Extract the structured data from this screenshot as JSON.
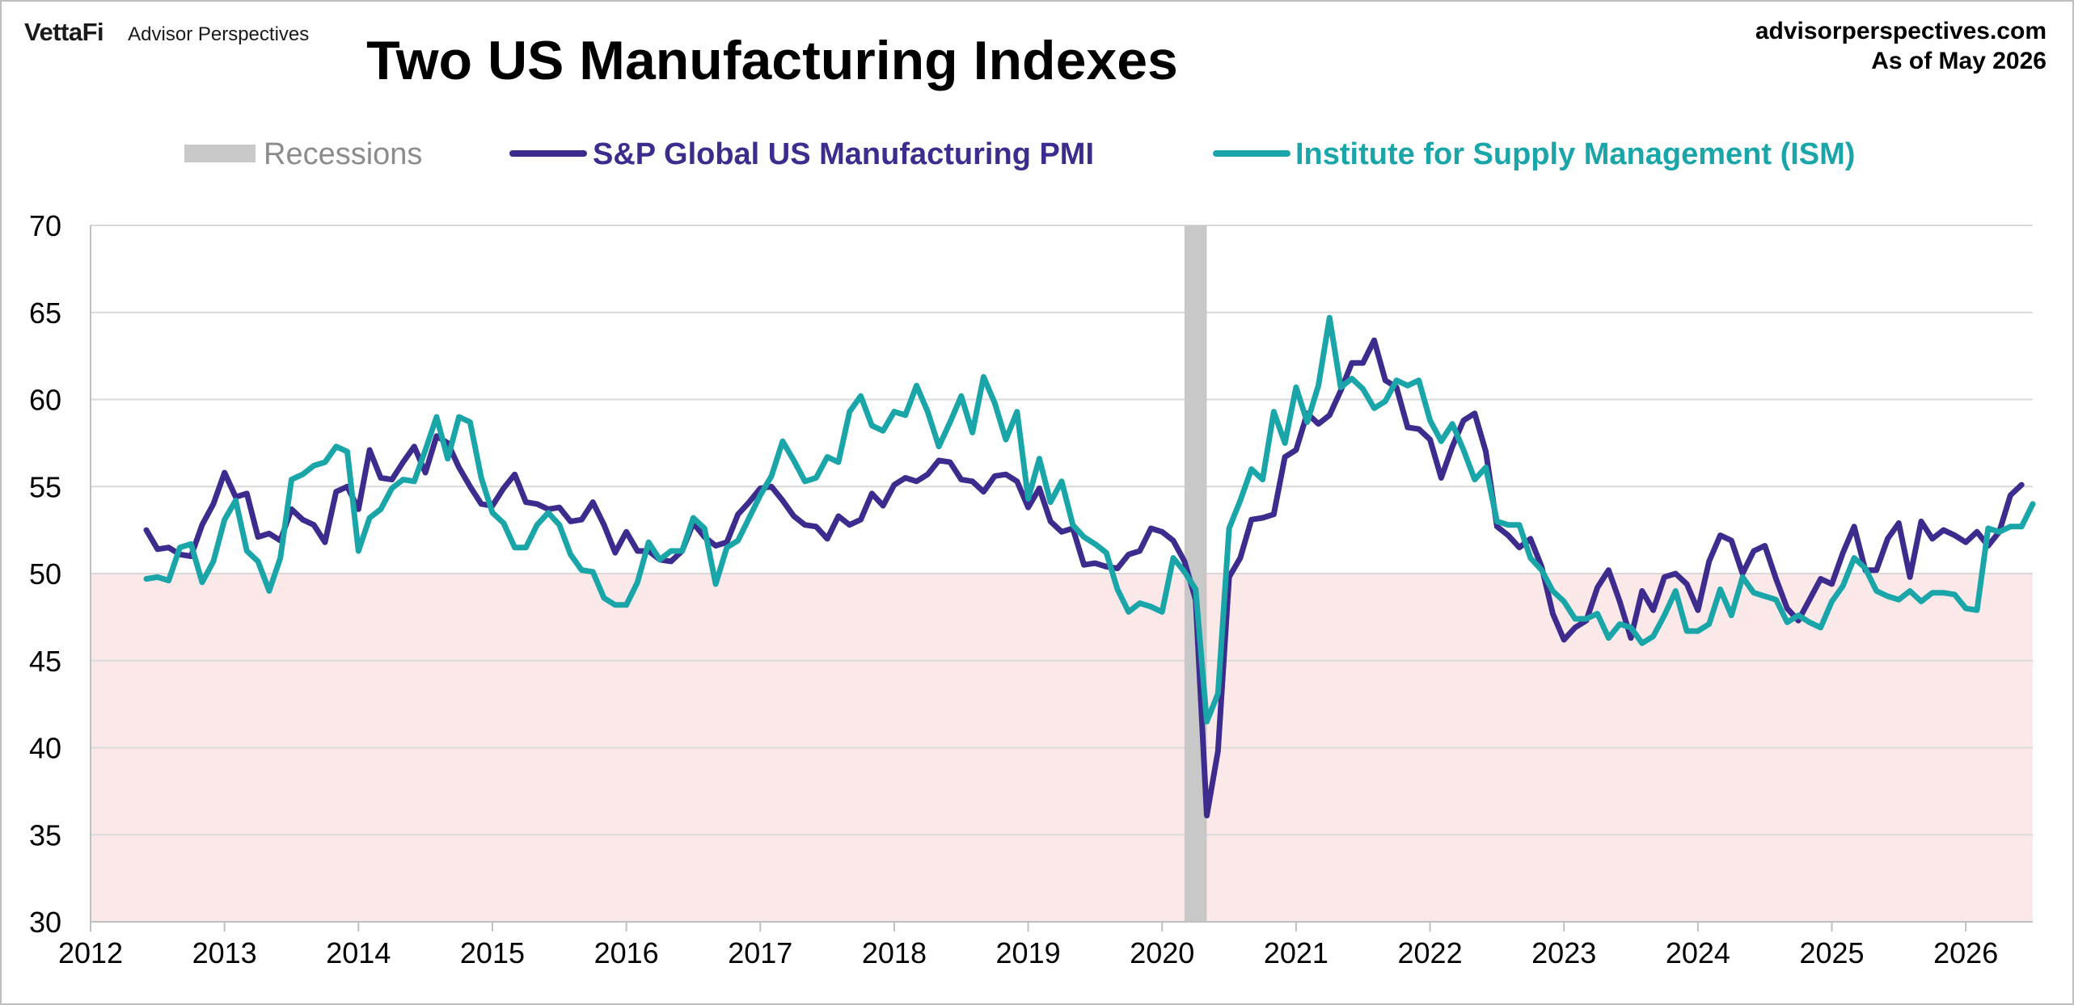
{
  "header": {
    "brand_primary": "VettaFi",
    "brand_secondary": "Advisor Perspectives",
    "source_url": "advisorperspectives.com",
    "as_of": "As of  May 2026"
  },
  "chart_data": {
    "type": "line",
    "title": "Two US Manufacturing Indexes",
    "xlabel": "",
    "ylabel": "",
    "ylim": [
      30,
      70
    ],
    "yticks": [
      30,
      35,
      40,
      45,
      50,
      55,
      60,
      65,
      70
    ],
    "xlim": [
      "2012-01",
      "2026-07"
    ],
    "xticks": [
      "2012",
      "2013",
      "2014",
      "2015",
      "2016",
      "2017",
      "2018",
      "2019",
      "2020",
      "2021",
      "2022",
      "2023",
      "2024",
      "2025",
      "2026"
    ],
    "grid": true,
    "legend_position": "top",
    "contraction_zone": [
      30,
      50
    ],
    "colors": {
      "recession": "#c8c8c8",
      "spglobal": "#3d2b8e",
      "ism": "#1aa6a8",
      "contraction": "#fbe9ea",
      "grid": "#d9d9d9"
    },
    "recessions": [
      {
        "label": "Recessions",
        "start": "2020-03",
        "end": "2020-05"
      }
    ],
    "series": [
      {
        "name": "S&P Global US Manufacturing PMI",
        "start": "2012-06",
        "values": [
          52.5,
          51.4,
          51.5,
          51.1,
          51.0,
          52.8,
          54.0,
          55.8,
          54.4,
          54.6,
          52.1,
          52.3,
          51.9,
          53.7,
          53.1,
          52.8,
          51.8,
          54.7,
          55.0,
          53.7,
          57.1,
          55.5,
          55.4,
          56.4,
          57.3,
          55.8,
          57.9,
          57.5,
          56.1,
          55.0,
          54.0,
          53.9,
          54.9,
          55.7,
          54.1,
          54.0,
          53.7,
          53.8,
          53.0,
          53.1,
          54.1,
          52.8,
          51.2,
          52.4,
          51.3,
          51.3,
          50.8,
          50.7,
          51.3,
          52.9,
          52.1,
          51.6,
          51.8,
          53.4,
          54.1,
          54.9,
          55.0,
          54.2,
          53.3,
          52.8,
          52.7,
          52.0,
          53.3,
          52.8,
          53.1,
          54.6,
          53.9,
          55.1,
          55.5,
          55.3,
          55.7,
          56.5,
          56.4,
          55.4,
          55.3,
          54.7,
          55.6,
          55.7,
          55.3,
          53.8,
          54.9,
          53.0,
          52.4,
          52.6,
          50.5,
          50.6,
          50.4,
          50.3,
          51.1,
          51.3,
          52.6,
          52.4,
          51.9,
          50.7,
          48.5,
          36.1,
          39.8,
          49.8,
          50.9,
          53.1,
          53.2,
          53.4,
          56.7,
          57.1,
          59.2,
          58.6,
          59.1,
          60.5,
          62.1,
          62.1,
          63.4,
          61.1,
          60.7,
          58.4,
          58.3,
          57.7,
          55.5,
          57.3,
          58.8,
          59.2,
          57.0,
          52.7,
          52.2,
          51.5,
          52.0,
          50.4,
          47.7,
          46.2,
          46.9,
          47.3,
          49.2,
          50.2,
          48.4,
          46.3,
          49.0,
          47.9,
          49.8,
          50.0,
          49.4,
          47.9,
          50.7,
          52.2,
          51.9,
          50.0,
          51.3,
          51.6,
          49.7,
          48.0,
          47.3,
          48.5,
          49.7,
          49.4,
          51.2,
          52.7,
          50.2,
          50.2,
          52.0,
          52.9,
          49.8,
          53.0,
          52.0,
          52.5,
          52.2,
          51.8,
          52.4,
          51.6,
          52.4,
          54.5,
          55.1
        ]
      },
      {
        "name": "Institute for Supply Management (ISM)",
        "start": "2012-06",
        "values": [
          49.7,
          49.8,
          49.6,
          51.5,
          51.7,
          49.5,
          50.7,
          53.1,
          54.2,
          51.3,
          50.7,
          49.0,
          50.9,
          55.4,
          55.7,
          56.2,
          56.4,
          57.3,
          57.0,
          51.3,
          53.2,
          53.7,
          54.9,
          55.4,
          55.3,
          57.1,
          59.0,
          56.6,
          59.0,
          58.7,
          55.5,
          53.5,
          52.9,
          51.5,
          51.5,
          52.8,
          53.5,
          52.8,
          51.1,
          50.2,
          50.1,
          48.6,
          48.2,
          48.2,
          49.5,
          51.8,
          50.8,
          51.3,
          51.3,
          53.2,
          52.6,
          49.4,
          51.5,
          51.9,
          53.2,
          54.5,
          55.6,
          57.6,
          56.5,
          55.3,
          55.5,
          56.7,
          56.4,
          59.3,
          60.2,
          58.5,
          58.2,
          59.3,
          59.1,
          60.8,
          59.3,
          57.3,
          58.7,
          60.2,
          58.1,
          61.3,
          59.8,
          57.7,
          59.3,
          54.3,
          56.6,
          54.1,
          55.3,
          52.8,
          52.1,
          51.7,
          51.2,
          49.1,
          47.8,
          48.3,
          48.1,
          47.8,
          50.9,
          50.1,
          49.1,
          41.5,
          43.1,
          52.6,
          54.2,
          56.0,
          55.4,
          59.3,
          57.5,
          60.7,
          58.7,
          60.8,
          64.7,
          60.7,
          61.2,
          60.6,
          59.5,
          59.9,
          61.1,
          60.8,
          61.1,
          58.8,
          57.6,
          58.6,
          57.1,
          55.4,
          56.1,
          53.0,
          52.8,
          52.8,
          50.9,
          50.2,
          49.0,
          48.4,
          47.4,
          47.4,
          47.7,
          46.3,
          47.1,
          46.9,
          46.0,
          46.4,
          47.6,
          49.0,
          46.7,
          46.7,
          47.1,
          49.1,
          47.6,
          49.8,
          48.9,
          48.7,
          48.5,
          47.2,
          47.6,
          47.2,
          46.9,
          48.4,
          49.3,
          50.9,
          50.3,
          49.0,
          48.7,
          48.5,
          49.0,
          48.4,
          48.9,
          48.9,
          48.8,
          48.0,
          47.9,
          52.6,
          52.4,
          52.7,
          52.7,
          54.0
        ]
      }
    ]
  }
}
